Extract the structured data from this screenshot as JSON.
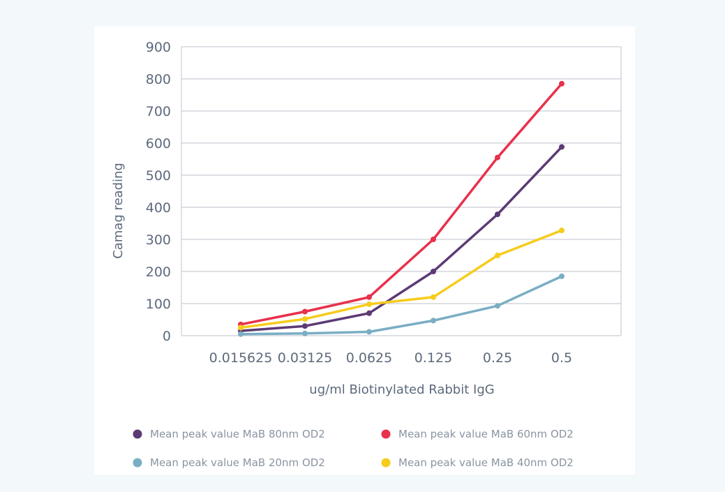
{
  "chart_data": {
    "type": "line",
    "title": "",
    "xlabel": "ug/ml Biotinylated Rabbit IgG",
    "ylabel": "Camag reading",
    "ylim": [
      0,
      900
    ],
    "yticks": [
      0,
      100,
      200,
      300,
      400,
      500,
      600,
      700,
      800,
      900
    ],
    "categories": [
      "0.015625",
      "0.03125",
      "0.0625",
      "0.125",
      "0.25",
      "0.5"
    ],
    "grid": true,
    "legend_position": "bottom",
    "series": [
      {
        "name": "Mean peak value MaB 80nm OD2",
        "color": "#5c3a74",
        "values": [
          15,
          30,
          70,
          200,
          378,
          588
        ]
      },
      {
        "name": "Mean peak value MaB 60nm OD2",
        "color": "#e8314c",
        "values": [
          35,
          75,
          120,
          300,
          555,
          785
        ]
      },
      {
        "name": "Mean peak value MaB 20nm OD2",
        "color": "#7aaec4",
        "values": [
          5,
          7,
          12,
          47,
          93,
          185
        ]
      },
      {
        "name": "Mean peak value MaB 40nm OD2",
        "color": "#f6cc1c",
        "values": [
          25,
          52,
          98,
          120,
          250,
          328
        ]
      }
    ],
    "legend_order": [
      0,
      1,
      2,
      3
    ]
  }
}
